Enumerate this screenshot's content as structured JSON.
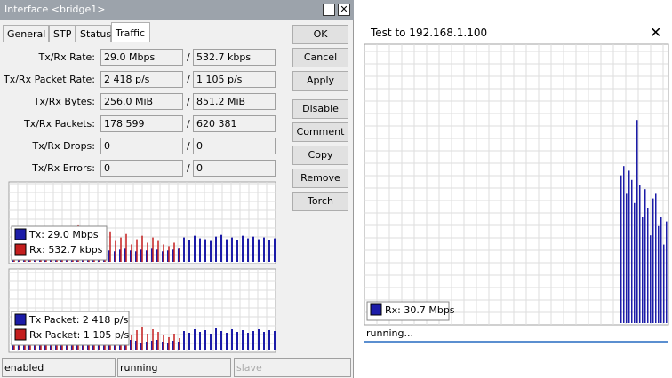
{
  "left_window": {
    "title": "Interface <bridge1>",
    "tabs": [
      "General",
      "STP",
      "Status",
      "Traffic"
    ],
    "active_tab": 3,
    "rows": [
      {
        "label": "Tx/Rx Rate:",
        "tx": "29.0 Mbps",
        "rx": "532.7 kbps"
      },
      {
        "label": "Tx/Rx Packet Rate:",
        "tx": "2 418 p/s",
        "rx": "1 105 p/s"
      },
      {
        "label": "Tx/Rx Bytes:",
        "tx": "256.0 MiB",
        "rx": "851.2 MiB"
      },
      {
        "label": "Tx/Rx Packets:",
        "tx": "178 599",
        "rx": "620 381"
      },
      {
        "label": "Tx/Rx Drops:",
        "tx": "0",
        "rx": "0"
      },
      {
        "label": "Tx/Rx Errors:",
        "tx": "0",
        "rx": "0"
      }
    ],
    "separator": "/",
    "buttons": [
      "OK",
      "Cancel",
      "Apply",
      "Disable",
      "Comment",
      "Copy",
      "Remove",
      "Torch"
    ],
    "graphs": [
      {
        "ylim": [
          0,
          90
        ],
        "series": [
          {
            "name": "Tx:  29.0 Mbps",
            "color": "#1c1ca8",
            "values": [
              10,
              12,
              11,
              13,
              12,
              14,
              12,
              13,
              15,
              12,
              14,
              13,
              12,
              14,
              13,
              15,
              12,
              14,
              13,
              12,
              14,
              15,
              13,
              12,
              14,
              13,
              15,
              14,
              12,
              13,
              14,
              15,
              28,
              25,
              30,
              27,
              26,
              24,
              29,
              31,
              26,
              28,
              25,
              30,
              27,
              29,
              26,
              28,
              25,
              27
            ]
          },
          {
            "name": "Rx:  532.7 kbps",
            "color": "#c41e1e",
            "values": [
              14,
              16,
              13,
              18,
              15,
              20,
              17,
              22,
              16,
              19,
              24,
              18,
              42,
              22,
              20,
              30,
              18,
              26,
              35,
              24,
              28,
              32,
              20,
              26,
              30,
              22,
              28,
              24,
              20,
              18,
              22,
              16,
              0,
              0,
              0,
              0,
              0,
              0,
              0,
              0,
              0,
              0,
              0,
              0,
              0,
              0,
              0,
              0,
              0,
              0
            ]
          }
        ]
      },
      {
        "ylim": [
          0,
          90
        ],
        "series": [
          {
            "name": "Tx Packet:  2 418 p/s",
            "color": "#1c1ca8",
            "values": [
              8,
              9,
              10,
              9,
              11,
              10,
              9,
              12,
              10,
              11,
              9,
              10,
              12,
              11,
              10,
              9,
              11,
              12,
              10,
              9,
              11,
              10,
              12,
              11,
              9,
              10,
              11,
              12,
              10,
              9,
              11,
              10,
              22,
              20,
              24,
              21,
              23,
              19,
              25,
              22,
              20,
              24,
              21,
              23,
              20,
              22,
              24,
              21,
              23,
              22
            ]
          },
          {
            "name": "Rx Packet:  1 105 p/s",
            "color": "#c41e1e",
            "values": [
              12,
              14,
              11,
              15,
              13,
              18,
              14,
              20,
              13,
              17,
              22,
              15,
              38,
              19,
              17,
              26,
              15,
              23,
              30,
              21,
              25,
              28,
              17,
              23,
              27,
              19,
              24,
              21,
              17,
              15,
              19,
              14,
              0,
              0,
              0,
              0,
              0,
              0,
              0,
              0,
              0,
              0,
              0,
              0,
              0,
              0,
              0,
              0,
              0,
              0
            ]
          }
        ]
      }
    ],
    "status": [
      "enabled",
      "running",
      "slave"
    ]
  },
  "right_window": {
    "title": "Test to 192.168.1.100",
    "graph": {
      "ylim": [
        0,
        60
      ],
      "series": [
        {
          "name": "Rx: 30.7 Mbps",
          "color": "#1c1ca8",
          "values": [
            32,
            34,
            28,
            33,
            31,
            26,
            44,
            30,
            23,
            29,
            25,
            19,
            27,
            28,
            21,
            23,
            17,
            22
          ]
        }
      ]
    },
    "status": "running..."
  }
}
